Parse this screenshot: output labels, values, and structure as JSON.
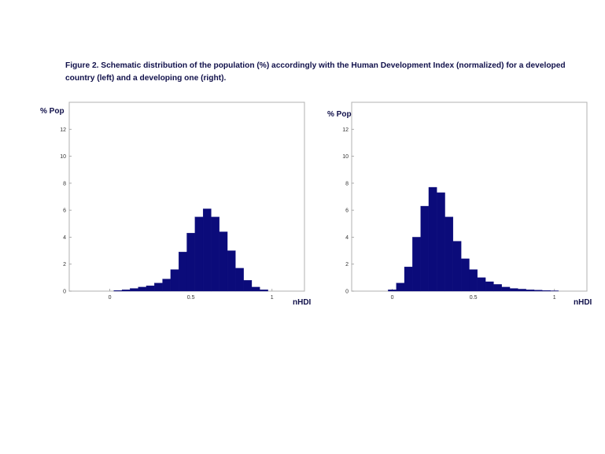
{
  "caption": "Figure 2. Schematic distribution of the population (%) accordingly with the Human Development Index (normalized) for a developed country (left) and a developing one (right).",
  "bar_color": "#0b0b7a",
  "chart_data": [
    {
      "type": "bar",
      "ylabel": "% Pop",
      "xlabel": "nHDI",
      "xlim": [
        -0.25,
        1.2
      ],
      "ylim": [
        0,
        14
      ],
      "xticks": [
        "0",
        "0.5",
        "1"
      ],
      "yticks": [
        "0",
        "2",
        "4",
        "6",
        "8",
        "10",
        "12"
      ],
      "categories": [
        0.05,
        0.1,
        0.15,
        0.2,
        0.25,
        0.3,
        0.35,
        0.4,
        0.45,
        0.5,
        0.55,
        0.6,
        0.65,
        0.7,
        0.75,
        0.8,
        0.85,
        0.9,
        0.95
      ],
      "values": [
        0.05,
        0.1,
        0.2,
        0.3,
        0.4,
        0.6,
        0.9,
        1.6,
        2.9,
        4.3,
        5.5,
        6.1,
        5.5,
        4.4,
        3.0,
        1.7,
        0.8,
        0.3,
        0.1
      ]
    },
    {
      "type": "bar",
      "ylabel": "% Pop",
      "xlabel": "nHDI",
      "xlim": [
        -0.25,
        1.2
      ],
      "ylim": [
        0,
        14
      ],
      "xticks": [
        "0",
        "0.5",
        "1"
      ],
      "yticks": [
        "0",
        "2",
        "4",
        "6",
        "8",
        "10",
        "12"
      ],
      "categories": [
        0.0,
        0.05,
        0.1,
        0.15,
        0.2,
        0.25,
        0.3,
        0.35,
        0.4,
        0.45,
        0.5,
        0.55,
        0.6,
        0.65,
        0.7,
        0.75,
        0.8,
        0.85,
        0.9,
        0.95,
        1.0
      ],
      "values": [
        0.1,
        0.6,
        1.8,
        4.0,
        6.3,
        7.7,
        7.3,
        5.5,
        3.7,
        2.4,
        1.6,
        1.0,
        0.7,
        0.5,
        0.3,
        0.2,
        0.15,
        0.1,
        0.08,
        0.05,
        0.03
      ]
    }
  ]
}
